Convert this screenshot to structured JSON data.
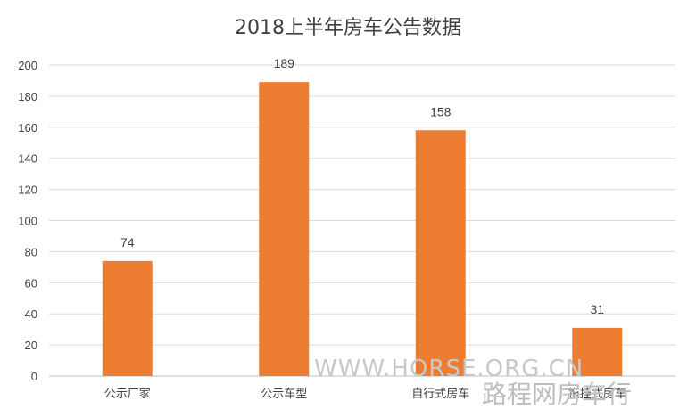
{
  "chart_data": {
    "type": "bar",
    "title": "2018上半年房车公告数据",
    "categories": [
      "公示厂家",
      "公示车型",
      "自行式房车",
      "拖挂式房车"
    ],
    "values": [
      74,
      189,
      158,
      31
    ],
    "ylim": [
      0,
      200
    ],
    "yticks": [
      0,
      20,
      40,
      60,
      80,
      100,
      120,
      140,
      160,
      180,
      200
    ],
    "bar_color": "#ED7D31",
    "grid": true,
    "legend": "none"
  },
  "watermark": {
    "line1": "WWW.HORSE.ORG.CN",
    "line2": "路程网房车行"
  }
}
